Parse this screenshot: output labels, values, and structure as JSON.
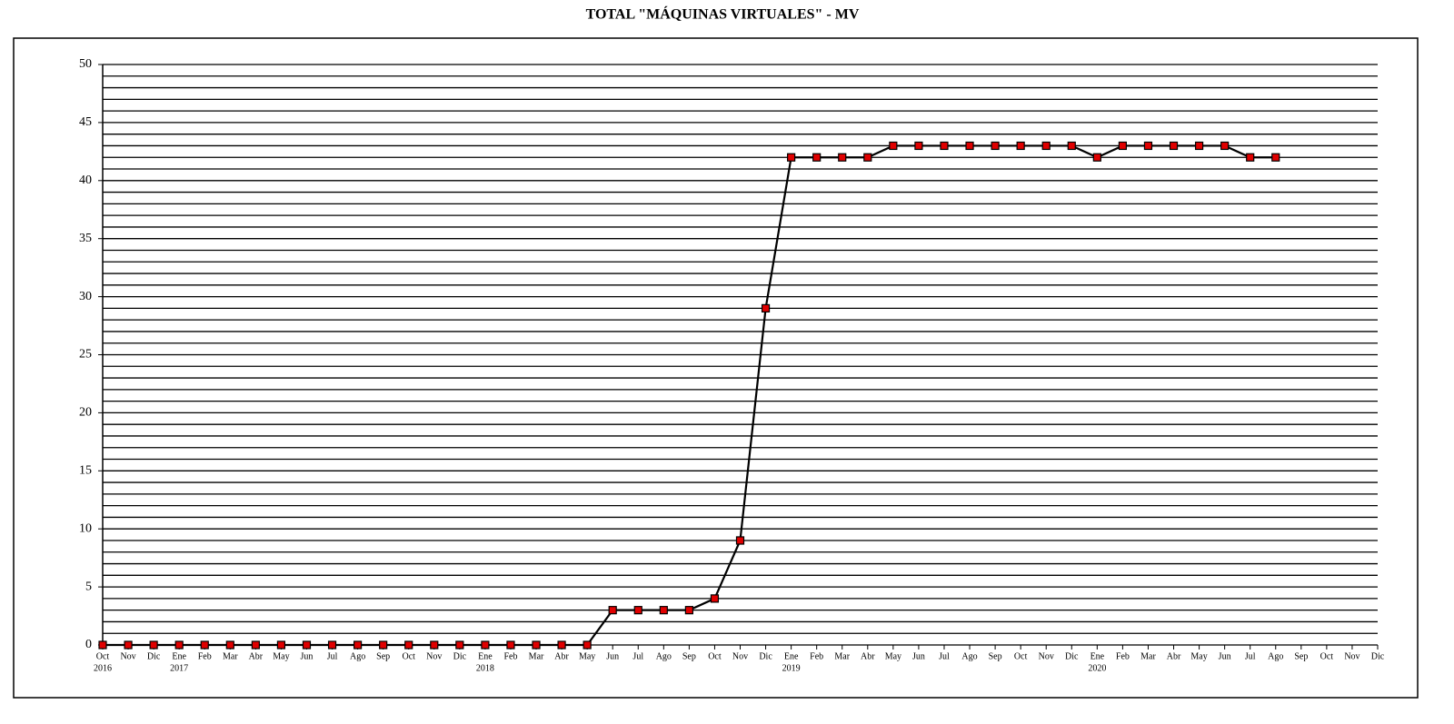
{
  "chart_data": {
    "type": "line",
    "title": "TOTAL \"MÁQUINAS VIRTUALES\" - MV",
    "categories": [
      "Oct",
      "Nov",
      "Dic",
      "Ene",
      "Feb",
      "Mar",
      "Abr",
      "May",
      "Jun",
      "Jul",
      "Ago",
      "Sep",
      "Oct",
      "Nov",
      "Dic",
      "Ene",
      "Feb",
      "Mar",
      "Abr",
      "May",
      "Jun",
      "Jul",
      "Ago",
      "Sep",
      "Oct",
      "Nov",
      "Dic",
      "Ene",
      "Feb",
      "Mar",
      "Abr",
      "May",
      "Jun",
      "Jul",
      "Ago",
      "Sep",
      "Oct",
      "Nov",
      "Dic",
      "Ene",
      "Feb",
      "Mar",
      "Abr",
      "May",
      "Jun",
      "Jul",
      "Ago",
      "Sep",
      "Oct",
      "Nov",
      "Dic"
    ],
    "years": [
      "2016",
      null,
      null,
      "2017",
      null,
      null,
      null,
      null,
      null,
      null,
      null,
      null,
      null,
      null,
      null,
      "2018",
      null,
      null,
      null,
      null,
      null,
      null,
      null,
      null,
      null,
      null,
      null,
      "2019",
      null,
      null,
      null,
      null,
      null,
      null,
      null,
      null,
      null,
      null,
      null,
      "2020",
      null,
      null,
      null,
      null,
      null,
      null,
      null,
      null,
      null,
      null,
      null
    ],
    "series": [
      {
        "color": "#000000",
        "marker_color": "#e00000",
        "values": [
          0,
          0,
          0,
          0,
          0,
          0,
          0,
          0,
          0,
          0,
          0,
          0,
          0,
          0,
          0,
          0,
          0,
          0,
          0,
          0,
          3,
          3,
          3,
          3,
          4,
          9,
          29,
          42,
          42,
          42,
          42,
          43,
          43,
          43,
          43,
          43,
          43,
          43,
          43,
          42,
          43,
          43,
          43,
          43,
          43,
          42,
          42,
          null,
          null,
          null,
          null
        ]
      }
    ],
    "ylim": [
      0,
      50
    ],
    "yticks": [
      0,
      5,
      10,
      15,
      20,
      25,
      30,
      35,
      40,
      45,
      50
    ],
    "grid_lines": [
      0,
      1,
      2,
      3,
      4,
      5,
      6,
      7,
      8,
      9,
      10,
      11,
      12,
      13,
      14,
      15,
      16,
      17,
      18,
      19,
      20,
      21,
      22,
      23,
      24,
      25,
      26,
      27,
      28,
      29,
      30,
      31,
      32,
      33,
      34,
      35,
      36,
      37,
      38,
      39,
      40,
      41,
      42,
      43,
      44,
      45,
      46,
      47,
      48,
      49,
      50
    ],
    "grid": true
  }
}
